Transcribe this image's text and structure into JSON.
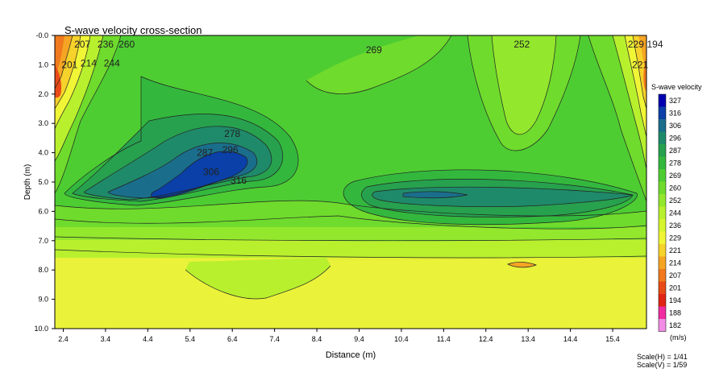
{
  "chart_data": {
    "type": "heatmap",
    "title": "S-wave velocity cross-section",
    "xlabel": "Distance (m)",
    "ylabel": "Depth (m)",
    "x_ticks": [
      "2.4",
      "3.4",
      "4.4",
      "5.4",
      "6.4",
      "7.4",
      "8.4",
      "9.4",
      "10.4",
      "11.4",
      "12.4",
      "13.4",
      "14.4",
      "15.4"
    ],
    "y_ticks": [
      "-0.0",
      "1.0",
      "2.0",
      "3.0",
      "4.0",
      "5.0",
      "6.0",
      "7.0",
      "8.0",
      "9.0",
      "10.0"
    ],
    "xlim": [
      2.2,
      16.2
    ],
    "ylim": [
      0.0,
      10.0
    ],
    "legend": {
      "title": "S-wave velocity",
      "units": "(m/s)",
      "levels": [
        327,
        316,
        306,
        296,
        287,
        278,
        269,
        260,
        252,
        244,
        236,
        229,
        221,
        214,
        207,
        201,
        194,
        188,
        182
      ],
      "colors": [
        "#0000b0",
        "#0a40a8",
        "#1a6e8c",
        "#1f8a6a",
        "#27a14e",
        "#33b83d",
        "#4ecd32",
        "#6fdb2c",
        "#93e72d",
        "#b8f02e",
        "#d6f52e",
        "#f0f536",
        "#f6d22a",
        "#f5a523",
        "#f07a1d",
        "#e84a17",
        "#e02514",
        "#f02ca0",
        "#f28ce6"
      ]
    },
    "contour_labels": [
      {
        "text": "207",
        "x": 2.85,
        "y": 0.3
      },
      {
        "text": "236",
        "x": 3.4,
        "y": 0.3
      },
      {
        "text": "260",
        "x": 3.9,
        "y": 0.3
      },
      {
        "text": "201",
        "x": 2.55,
        "y": 1.0
      },
      {
        "text": "214",
        "x": 3.0,
        "y": 0.95
      },
      {
        "text": "244",
        "x": 3.55,
        "y": 0.95
      },
      {
        "text": "269",
        "x": 9.75,
        "y": 0.5
      },
      {
        "text": "252",
        "x": 13.25,
        "y": 0.3
      },
      {
        "text": "229",
        "x": 15.95,
        "y": 0.3
      },
      {
        "text": "194",
        "x": 16.4,
        "y": 0.3
      },
      {
        "text": "221",
        "x": 16.05,
        "y": 1.0
      },
      {
        "text": "278",
        "x": 6.4,
        "y": 3.35
      },
      {
        "text": "287",
        "x": 5.75,
        "y": 4.0
      },
      {
        "text": "296",
        "x": 6.35,
        "y": 3.9
      },
      {
        "text": "306",
        "x": 5.9,
        "y": 4.65
      },
      {
        "text": "316",
        "x": 6.55,
        "y": 4.95
      }
    ],
    "scale": {
      "h": "Scale(H) = 1/41",
      "v": "Scale(V) = 1/59"
    }
  }
}
